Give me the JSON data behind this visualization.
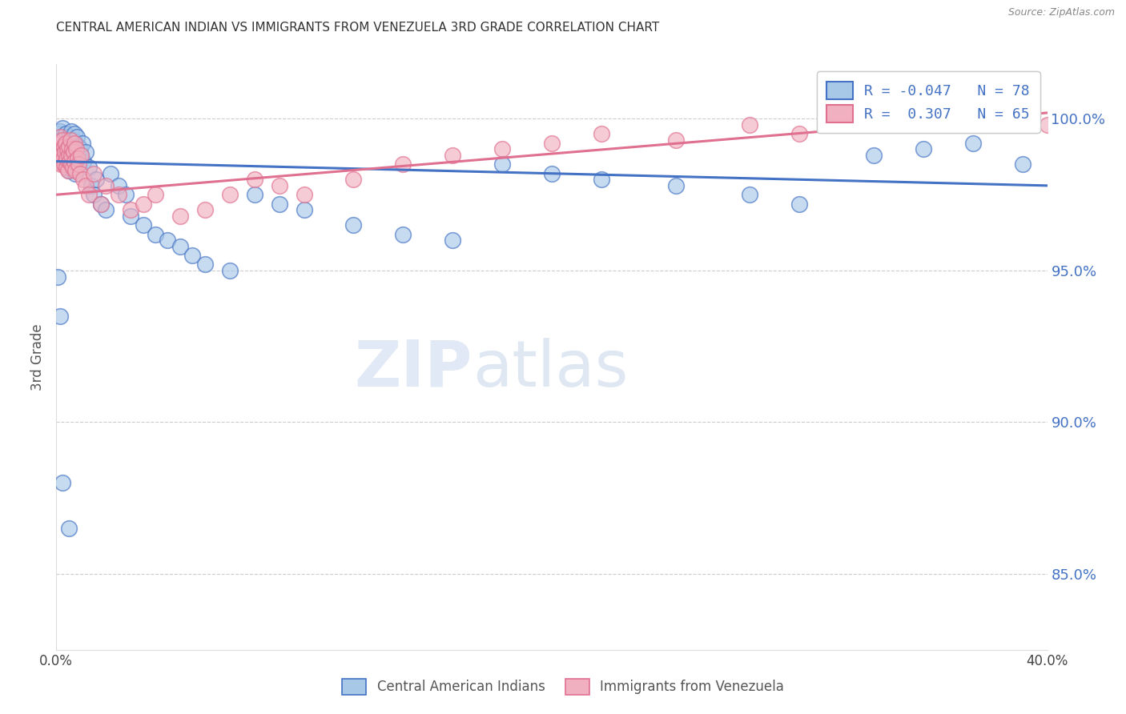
{
  "title": "CENTRAL AMERICAN INDIAN VS IMMIGRANTS FROM VENEZUELA 3RD GRADE CORRELATION CHART",
  "source": "Source: ZipAtlas.com",
  "ylabel": "3rd Grade",
  "y_ticks": [
    85.0,
    90.0,
    95.0,
    100.0
  ],
  "y_tick_labels": [
    "85.0%",
    "90.0%",
    "95.0%",
    "100.0%"
  ],
  "xlim": [
    0.0,
    40.0
  ],
  "ylim": [
    82.5,
    101.8
  ],
  "r_blue": -0.047,
  "n_blue": 78,
  "r_pink": 0.307,
  "n_pink": 65,
  "blue_color": "#a8c8e8",
  "pink_color": "#f0b0c0",
  "line_blue": "#4472c4",
  "line_pink": "#e07090",
  "watermark_zip": "ZIP",
  "watermark_atlas": "atlas",
  "background_color": "#ffffff",
  "legend_labels": [
    "Central American Indians",
    "Immigrants from Venezuela"
  ],
  "blue_scatter_x": [
    0.05,
    0.08,
    0.1,
    0.12,
    0.14,
    0.15,
    0.18,
    0.2,
    0.22,
    0.25,
    0.28,
    0.3,
    0.32,
    0.35,
    0.38,
    0.4,
    0.42,
    0.45,
    0.48,
    0.5,
    0.52,
    0.55,
    0.58,
    0.6,
    0.62,
    0.65,
    0.68,
    0.7,
    0.72,
    0.75,
    0.78,
    0.8,
    0.82,
    0.85,
    0.88,
    0.9,
    0.95,
    1.0,
    1.05,
    1.1,
    1.2,
    1.3,
    1.4,
    1.5,
    1.6,
    1.8,
    2.0,
    2.2,
    2.5,
    2.8,
    3.0,
    3.5,
    4.0,
    4.5,
    5.0,
    5.5,
    6.0,
    7.0,
    8.0,
    9.0,
    10.0,
    12.0,
    14.0,
    16.0,
    18.0,
    20.0,
    22.0,
    25.0,
    28.0,
    30.0,
    33.0,
    35.0,
    37.0,
    39.0,
    0.06,
    0.15,
    0.25,
    0.5
  ],
  "blue_scatter_y": [
    99.2,
    99.5,
    98.8,
    99.3,
    99.6,
    99.0,
    99.4,
    98.9,
    99.1,
    99.7,
    98.6,
    99.0,
    99.3,
    98.7,
    99.5,
    98.8,
    99.2,
    98.5,
    99.0,
    99.4,
    98.3,
    99.1,
    98.7,
    99.6,
    98.4,
    99.0,
    98.8,
    99.3,
    98.6,
    99.5,
    98.2,
    99.0,
    99.4,
    98.7,
    99.1,
    98.5,
    99.0,
    98.8,
    99.2,
    98.6,
    98.9,
    98.4,
    97.8,
    97.5,
    98.0,
    97.2,
    97.0,
    98.2,
    97.8,
    97.5,
    96.8,
    96.5,
    96.2,
    96.0,
    95.8,
    95.5,
    95.2,
    95.0,
    97.5,
    97.2,
    97.0,
    96.5,
    96.2,
    96.0,
    98.5,
    98.2,
    98.0,
    97.8,
    97.5,
    97.2,
    98.8,
    99.0,
    99.2,
    98.5,
    94.8,
    93.5,
    88.0,
    86.5
  ],
  "pink_scatter_x": [
    0.05,
    0.08,
    0.1,
    0.12,
    0.15,
    0.18,
    0.2,
    0.22,
    0.25,
    0.28,
    0.3,
    0.32,
    0.35,
    0.38,
    0.4,
    0.42,
    0.45,
    0.48,
    0.5,
    0.52,
    0.55,
    0.58,
    0.6,
    0.62,
    0.65,
    0.68,
    0.7,
    0.72,
    0.75,
    0.78,
    0.8,
    0.85,
    0.9,
    0.95,
    1.0,
    1.1,
    1.2,
    1.3,
    1.5,
    1.8,
    2.0,
    2.5,
    3.0,
    3.5,
    4.0,
    5.0,
    6.0,
    7.0,
    8.0,
    9.0,
    10.0,
    12.0,
    14.0,
    16.0,
    18.0,
    20.0,
    22.0,
    25.0,
    28.0,
    30.0,
    32.0,
    34.0,
    36.0,
    38.0,
    40.0
  ],
  "pink_scatter_y": [
    99.0,
    98.8,
    99.2,
    98.6,
    99.4,
    98.5,
    99.0,
    98.8,
    99.3,
    98.7,
    99.1,
    98.5,
    98.9,
    99.2,
    98.4,
    98.7,
    99.0,
    98.3,
    98.8,
    99.1,
    98.6,
    99.3,
    98.5,
    98.8,
    99.0,
    98.4,
    98.9,
    99.2,
    98.6,
    98.3,
    99.0,
    98.7,
    98.5,
    98.2,
    98.8,
    98.0,
    97.8,
    97.5,
    98.2,
    97.2,
    97.8,
    97.5,
    97.0,
    97.2,
    97.5,
    96.8,
    97.0,
    97.5,
    98.0,
    97.8,
    97.5,
    98.0,
    98.5,
    98.8,
    99.0,
    99.2,
    99.5,
    99.3,
    99.8,
    99.5,
    100.0,
    99.8,
    100.2,
    100.0,
    99.8
  ],
  "blue_line_x": [
    0.0,
    40.0
  ],
  "blue_line_y": [
    98.6,
    97.8
  ],
  "pink_line_x": [
    0.0,
    40.0
  ],
  "pink_line_y": [
    97.5,
    100.2
  ]
}
